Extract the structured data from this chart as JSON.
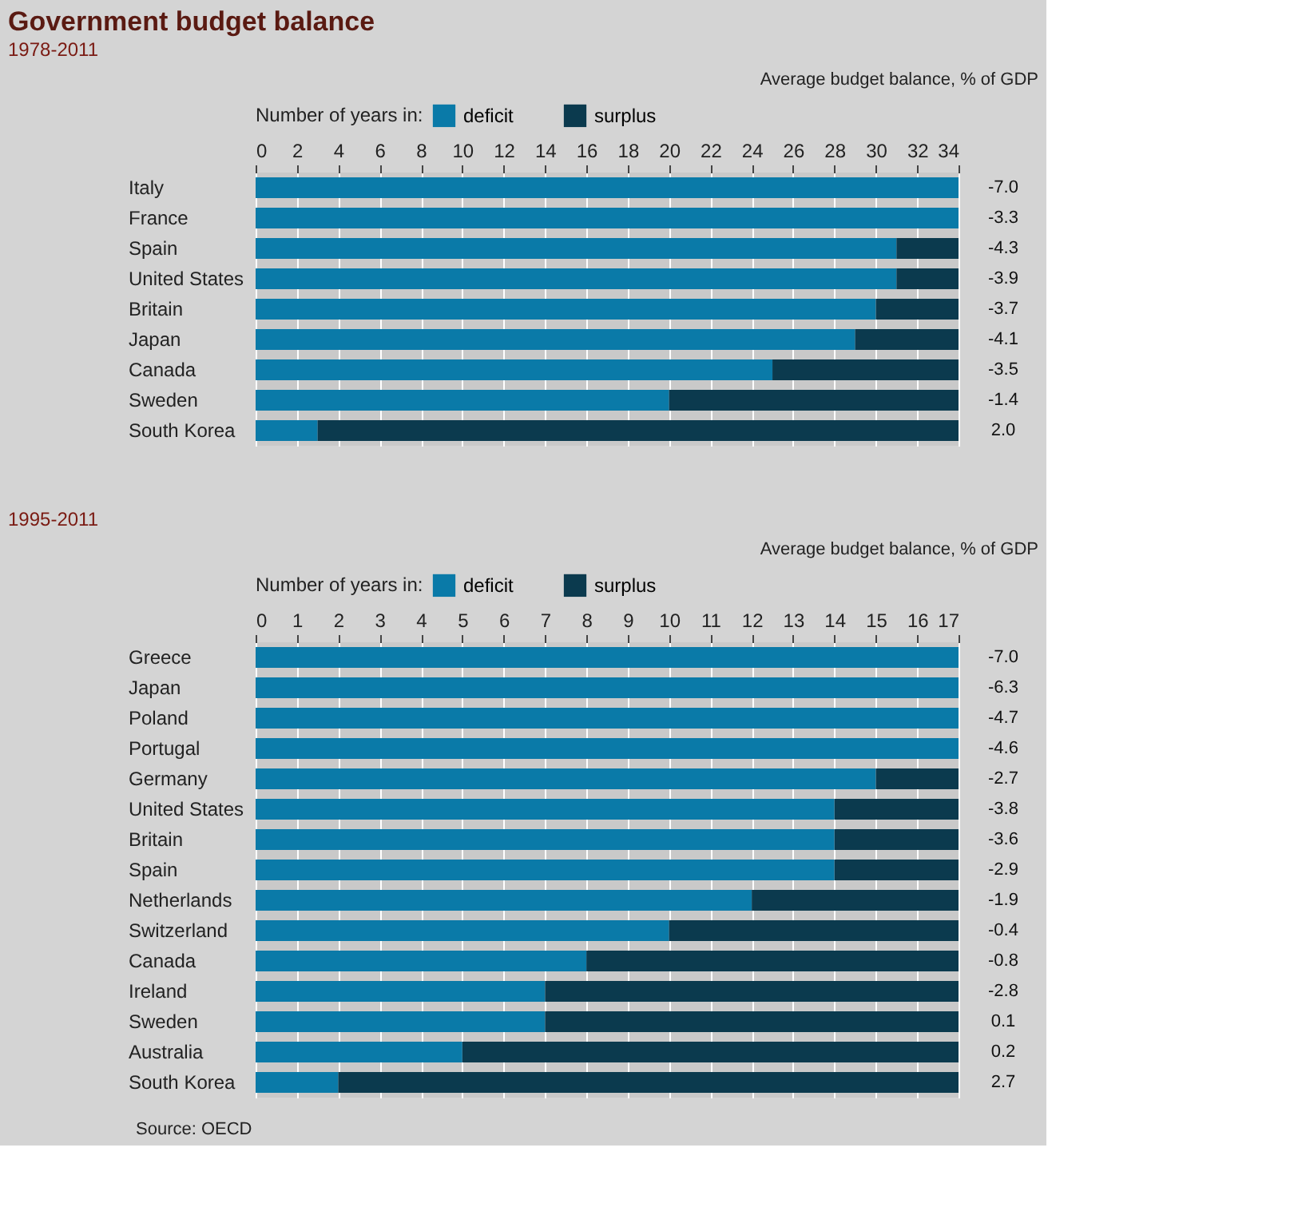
{
  "chart_data": [
    {
      "type": "bar",
      "title": "Government budget balance",
      "subtitle": "1978-2011",
      "orientation": "horizontal",
      "stacked": true,
      "legend": "top left",
      "legend_title": "Number of years in:",
      "grid": "x",
      "categories": [
        "Italy",
        "France",
        "Spain",
        "United States",
        "Britain",
        "Japan",
        "Canada",
        "Sweden",
        "South Korea"
      ],
      "series": [
        {
          "name": "deficit",
          "color": "#0a7aa8",
          "values": [
            34,
            34,
            31,
            31,
            30,
            29,
            25,
            20,
            3
          ]
        },
        {
          "name": "surplus",
          "color": "#0b3a4e",
          "values": [
            0,
            0,
            3,
            3,
            4,
            5,
            9,
            14,
            31
          ]
        }
      ],
      "xlim": [
        0,
        34
      ],
      "xticks": [
        0,
        2,
        4,
        6,
        8,
        10,
        12,
        14,
        16,
        18,
        20,
        22,
        24,
        26,
        28,
        30,
        32,
        34
      ],
      "annotations": [
        "Average budget balance, % of GDP",
        "-7.0",
        "-3.3",
        "-4.3",
        "-3.9",
        "-3.7",
        "-4.1",
        "-3.5",
        "-1.4",
        "2.0"
      ]
    },
    {
      "type": "bar",
      "title": "1995-2011",
      "orientation": "horizontal",
      "stacked": true,
      "legend": "top left",
      "legend_title": "Number of years in:",
      "grid": "x",
      "categories": [
        "Greece",
        "Japan",
        "Poland",
        "Portugal",
        "Germany",
        "United States",
        "Britain",
        "Spain",
        "Netherlands",
        "Switzerland",
        "Canada",
        "Ireland",
        "Sweden",
        "Australia",
        "South Korea"
      ],
      "series": [
        {
          "name": "deficit",
          "color": "#0a7aa8",
          "values": [
            17,
            17,
            17,
            17,
            15,
            14,
            14,
            14,
            12,
            10,
            8,
            7,
            7,
            5,
            2
          ]
        },
        {
          "name": "surplus",
          "color": "#0b3a4e",
          "values": [
            0,
            0,
            0,
            0,
            2,
            3,
            3,
            3,
            5,
            7,
            9,
            10,
            10,
            12,
            15
          ]
        }
      ],
      "xlim": [
        0,
        17
      ],
      "xticks": [
        0,
        1,
        2,
        3,
        4,
        5,
        6,
        7,
        8,
        9,
        10,
        11,
        12,
        13,
        14,
        15,
        16,
        17
      ],
      "annotations": [
        "Average budget balance, % of GDP",
        "-7.0",
        "-6.3",
        "-4.7",
        "-4.6",
        "-2.7",
        "-3.8",
        "-3.6",
        "-2.9",
        "-1.9",
        "-0.4",
        "-0.8",
        "-2.8",
        "0.1",
        "0.2",
        "2.7",
        "Source: OECD"
      ]
    }
  ]
}
